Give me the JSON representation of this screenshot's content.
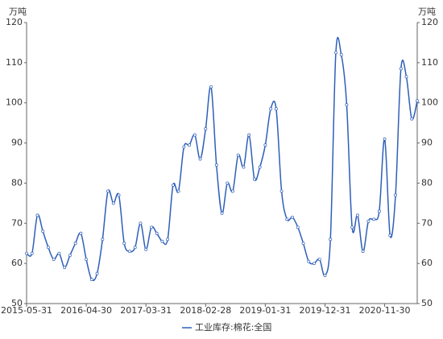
{
  "chart_data": {
    "type": "line",
    "ylabel": "万吨",
    "y2label": "万吨",
    "categories": [
      "2015-05-31",
      null,
      null,
      null,
      null,
      null,
      null,
      null,
      null,
      null,
      null,
      "2016-04-30",
      null,
      null,
      null,
      null,
      null,
      null,
      null,
      null,
      null,
      null,
      "2017-03-31",
      null,
      null,
      null,
      null,
      null,
      null,
      null,
      null,
      null,
      null,
      "2018-02-28",
      null,
      null,
      null,
      null,
      null,
      null,
      null,
      null,
      null,
      null,
      "2019-01-31",
      null,
      null,
      null,
      null,
      null,
      null,
      null,
      null,
      null,
      null,
      "2019-12-31",
      null,
      null,
      null,
      null,
      null,
      null,
      null,
      null,
      null,
      null,
      "2020-11-30",
      null,
      null,
      null,
      null,
      null,
      null
    ],
    "series": [
      {
        "name": "工业库存:棉花:全国",
        "color": "#2e5fb8",
        "values": [
          62.5,
          62.5,
          72,
          68,
          64,
          61,
          62.5,
          59,
          62,
          65,
          67.5,
          61,
          56,
          57.5,
          66,
          78,
          75,
          77,
          65,
          63,
          64,
          70,
          63.5,
          69,
          67.5,
          65.5,
          66,
          79.5,
          78,
          89,
          89.5,
          92,
          86,
          93.5,
          104,
          84.5,
          72.5,
          80,
          78,
          87,
          84,
          92,
          81,
          84,
          89.5,
          98.5,
          98.5,
          78,
          71,
          71.5,
          69,
          65,
          60.5,
          60,
          61,
          57,
          66,
          112.5,
          112,
          99.5,
          69,
          72,
          63,
          70.5,
          71,
          73,
          91,
          67,
          77,
          108.5,
          106.5,
          96,
          100.5
        ]
      }
    ],
    "ylim": [
      50,
      120
    ],
    "yticks": [
      50,
      60,
      70,
      80,
      90,
      100,
      110,
      120
    ],
    "y2lim": [
      50,
      120
    ],
    "y2ticks": [
      50,
      60,
      70,
      80,
      90,
      100,
      110,
      120
    ],
    "grid": false
  }
}
